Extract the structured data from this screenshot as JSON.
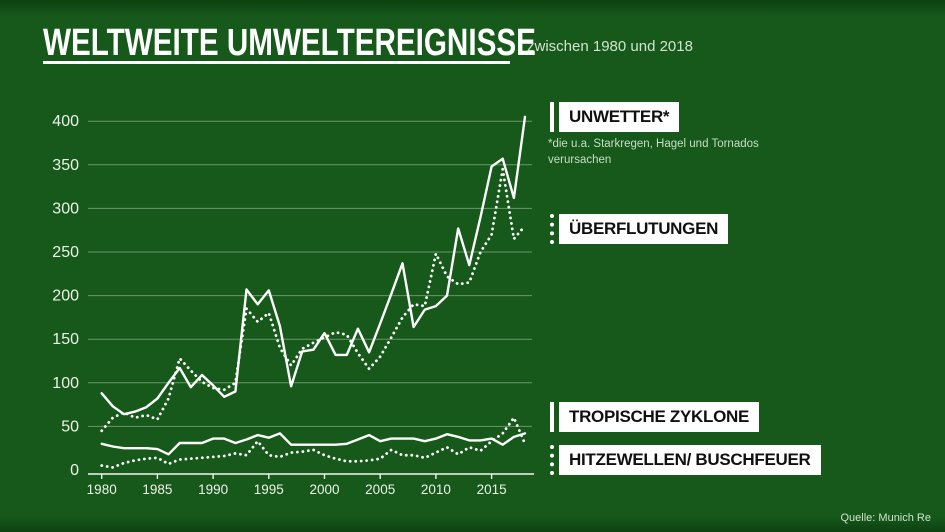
{
  "page": {
    "background": "#16591b",
    "line_color": "#ffffff",
    "grid_color": "rgba(220,238,214,0.42)",
    "label_color": "#edf3e8"
  },
  "header": {
    "title": "WELTWEITE UMWELTEREIGNISSE",
    "subtitle": "zwischen 1980 und 2018"
  },
  "legend": {
    "items": [
      {
        "label": "UNWETTER*",
        "line_style": "solid"
      },
      {
        "label": "ÜBERFLUTUNGEN",
        "line_style": "dotted"
      },
      {
        "label": "TROPISCHE ZYKLONE",
        "line_style": "solid"
      },
      {
        "label": "HITZEWELLEN/ BUSCHFEUER",
        "line_style": "dotted"
      }
    ],
    "unwetter_note": "*die u.a. Starkregen, Hagel und Tornados verursachen"
  },
  "source": "Quelle: Munich Re",
  "chart_data": {
    "type": "line",
    "title": "Weltweite Umweltereignisse zwischen 1980 und 2018",
    "xlabel": "",
    "ylabel": "",
    "x": [
      1980,
      1981,
      1982,
      1983,
      1984,
      1985,
      1986,
      1987,
      1988,
      1989,
      1990,
      1991,
      1992,
      1993,
      1994,
      1995,
      1996,
      1997,
      1998,
      1999,
      2000,
      2001,
      2002,
      2003,
      2004,
      2005,
      2006,
      2007,
      2008,
      2009,
      2010,
      2011,
      2012,
      2013,
      2014,
      2015,
      2016,
      2017,
      2018
    ],
    "series": [
      {
        "name": "Unwetter",
        "style": "solid",
        "values": [
          88,
          73,
          64,
          67,
          72,
          82,
          100,
          117,
          95,
          109,
          97,
          84,
          90,
          207,
          190,
          206,
          165,
          96,
          136,
          138,
          157,
          132,
          132,
          162,
          135,
          168,
          202,
          237,
          164,
          184,
          188,
          200,
          277,
          235,
          290,
          348,
          357,
          312,
          405
        ]
      },
      {
        "name": "Überflutungen",
        "style": "dotted",
        "values": [
          45,
          60,
          66,
          60,
          63,
          58,
          82,
          128,
          114,
          101,
          94,
          92,
          100,
          185,
          170,
          180,
          140,
          120,
          139,
          146,
          152,
          158,
          155,
          134,
          116,
          130,
          152,
          175,
          190,
          188,
          248,
          222,
          213,
          215,
          250,
          270,
          345,
          265,
          280
        ]
      },
      {
        "name": "Tropische Zyklone",
        "style": "solid",
        "values": [
          30,
          27,
          25,
          25,
          25,
          24,
          18,
          31,
          31,
          31,
          36,
          36,
          31,
          35,
          40,
          37,
          42,
          29,
          29,
          29,
          29,
          29,
          30,
          35,
          40,
          33,
          36,
          36,
          36,
          33,
          36,
          41,
          38,
          34,
          34,
          36,
          29,
          38,
          42
        ]
      },
      {
        "name": "Hitzewellen/ Buschfeuer",
        "style": "dotted",
        "values": [
          5,
          3,
          8,
          11,
          13,
          14,
          7,
          12,
          13,
          14,
          15,
          16,
          19,
          17,
          33,
          17,
          15,
          20,
          21,
          23,
          17,
          13,
          10,
          10,
          11,
          13,
          23,
          17,
          17,
          14,
          20,
          26,
          18,
          26,
          22,
          33,
          42,
          60,
          30
        ]
      }
    ],
    "ylim": [
      0,
      400
    ],
    "yticks": [
      0,
      50,
      100,
      150,
      200,
      250,
      300,
      350,
      400
    ],
    "xticks": [
      1980,
      1985,
      1990,
      1995,
      2000,
      2005,
      2010,
      2015
    ],
    "grid": true,
    "legend_position": "right"
  }
}
